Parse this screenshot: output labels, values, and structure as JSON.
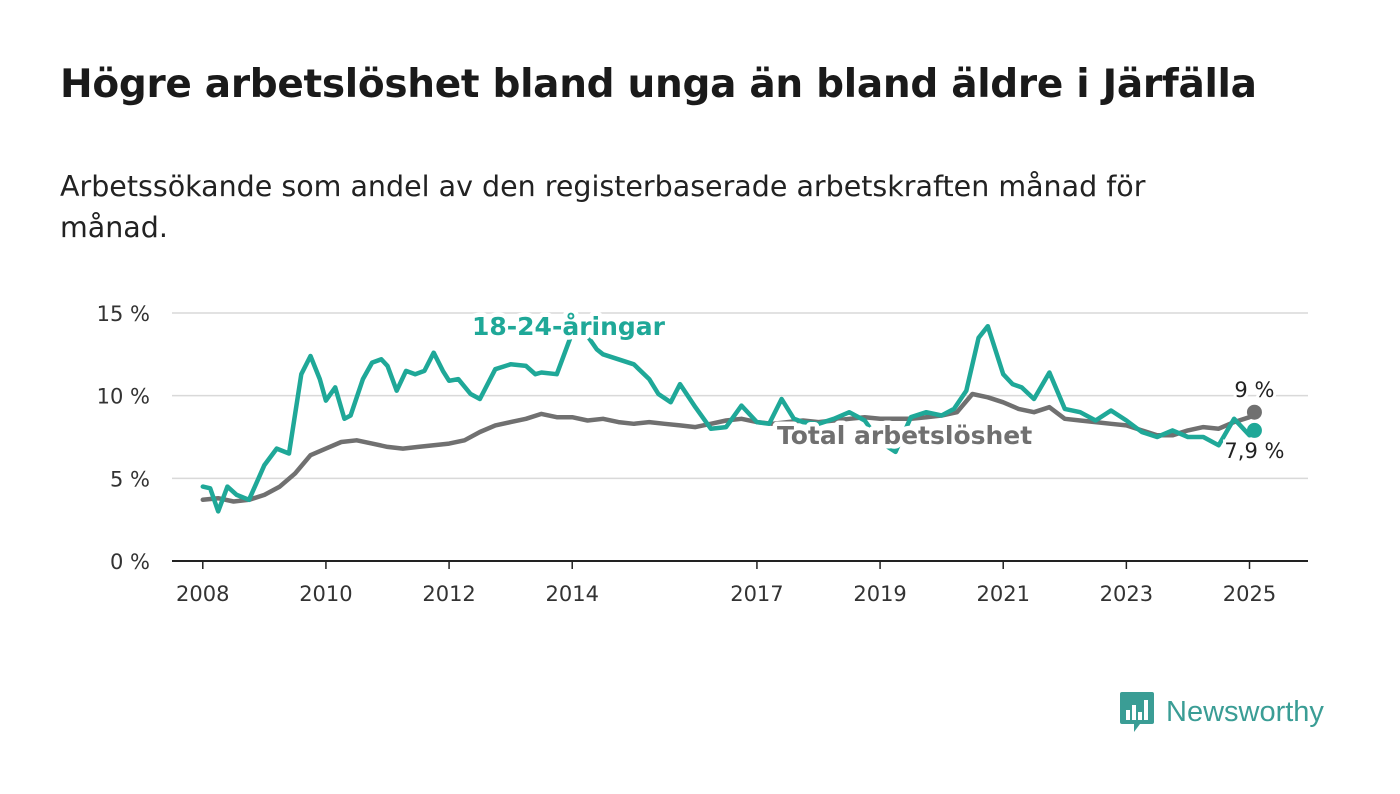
{
  "title": "Högre arbetslöshet bland unga än bland äldre i Järfälla",
  "subtitle": "Arbetssökande som andel av den registerbaserade arbetskraften månad för månad.",
  "brand": {
    "name": "Newsworthy",
    "color": "#3a9d95"
  },
  "chart_data": {
    "type": "line",
    "ylim": [
      0,
      15
    ],
    "xlim": [
      2007.5,
      2025.95
    ],
    "yticks": [
      {
        "value": 0,
        "label": "0 %"
      },
      {
        "value": 5,
        "label": "5 %"
      },
      {
        "value": 10,
        "label": "10 %"
      },
      {
        "value": 15,
        "label": "15 %"
      }
    ],
    "xticks": [
      {
        "value": 2008.0,
        "label": "2008"
      },
      {
        "value": 2010.0,
        "label": "2010"
      },
      {
        "value": 2012.0,
        "label": "2012"
      },
      {
        "value": 2014.0,
        "label": "2014"
      },
      {
        "value": 2017.0,
        "label": "2017"
      },
      {
        "value": 2019.0,
        "label": "2019"
      },
      {
        "value": 2021.0,
        "label": "2021"
      },
      {
        "value": 2023.0,
        "label": "2023"
      },
      {
        "value": 2025.0,
        "label": "2025"
      }
    ],
    "grid": true,
    "series": [
      {
        "name": "Total arbetslöshet",
        "color": "#707070",
        "end_label": "9 %",
        "x": [
          2008.0,
          2008.25,
          2008.5,
          2008.75,
          2009.0,
          2009.25,
          2009.5,
          2009.75,
          2010.0,
          2010.25,
          2010.5,
          2010.75,
          2011.0,
          2011.25,
          2011.5,
          2011.75,
          2012.0,
          2012.25,
          2012.5,
          2012.75,
          2013.0,
          2013.25,
          2013.5,
          2013.75,
          2014.0,
          2014.25,
          2014.5,
          2014.75,
          2015.0,
          2015.25,
          2015.5,
          2015.75,
          2016.0,
          2016.25,
          2016.5,
          2016.75,
          2017.0,
          2017.25,
          2017.5,
          2017.75,
          2018.0,
          2018.25,
          2018.5,
          2018.75,
          2019.0,
          2019.25,
          2019.5,
          2019.75,
          2020.0,
          2020.25,
          2020.5,
          2020.75,
          2021.0,
          2021.25,
          2021.5,
          2021.75,
          2022.0,
          2022.25,
          2022.5,
          2022.75,
          2023.0,
          2023.25,
          2023.5,
          2023.75,
          2024.0,
          2024.25,
          2024.5,
          2024.75,
          2025.0,
          2025.08
        ],
        "y": [
          3.7,
          3.8,
          3.6,
          3.7,
          4.0,
          4.5,
          5.3,
          6.4,
          6.8,
          7.2,
          7.3,
          7.1,
          6.9,
          6.8,
          6.9,
          7.0,
          7.1,
          7.3,
          7.8,
          8.2,
          8.4,
          8.6,
          8.9,
          8.7,
          8.7,
          8.5,
          8.6,
          8.4,
          8.3,
          8.4,
          8.3,
          8.2,
          8.1,
          8.3,
          8.5,
          8.6,
          8.4,
          8.3,
          8.4,
          8.5,
          8.4,
          8.5,
          8.6,
          8.7,
          8.6,
          8.6,
          8.6,
          8.7,
          8.8,
          9.0,
          10.1,
          9.9,
          9.6,
          9.2,
          9.0,
          9.3,
          8.6,
          8.5,
          8.4,
          8.3,
          8.2,
          7.9,
          7.6,
          7.6,
          7.9,
          8.1,
          8.0,
          8.4,
          8.7,
          9.0
        ]
      },
      {
        "name": "18-24-åringar",
        "color": "#1fa898",
        "end_label": "7,9 %",
        "x": [
          2008.0,
          2008.12,
          2008.25,
          2008.4,
          2008.55,
          2008.75,
          2009.0,
          2009.2,
          2009.4,
          2009.6,
          2009.75,
          2009.9,
          2010.0,
          2010.15,
          2010.3,
          2010.4,
          2010.6,
          2010.75,
          2010.9,
          2011.0,
          2011.15,
          2011.3,
          2011.45,
          2011.6,
          2011.75,
          2011.9,
          2012.0,
          2012.15,
          2012.35,
          2012.5,
          2012.75,
          2013.0,
          2013.25,
          2013.4,
          2013.5,
          2013.75,
          2014.0,
          2014.25,
          2014.4,
          2014.5,
          2014.75,
          2015.0,
          2015.25,
          2015.4,
          2015.6,
          2015.75,
          2016.0,
          2016.25,
          2016.5,
          2016.75,
          2017.0,
          2017.2,
          2017.4,
          2017.6,
          2017.75,
          2018.0,
          2018.25,
          2018.5,
          2018.75,
          2019.0,
          2019.25,
          2019.5,
          2019.75,
          2020.0,
          2020.2,
          2020.4,
          2020.6,
          2020.75,
          2021.0,
          2021.15,
          2021.3,
          2021.5,
          2021.75,
          2022.0,
          2022.25,
          2022.5,
          2022.75,
          2023.0,
          2023.25,
          2023.5,
          2023.75,
          2024.0,
          2024.25,
          2024.5,
          2024.75,
          2025.0,
          2025.08
        ],
        "y": [
          4.5,
          4.4,
          3.0,
          4.5,
          4.0,
          3.7,
          5.8,
          6.8,
          6.5,
          11.3,
          12.4,
          11.0,
          9.7,
          10.5,
          8.6,
          8.8,
          11.0,
          12.0,
          12.2,
          11.8,
          10.3,
          11.5,
          11.3,
          11.5,
          12.6,
          11.5,
          10.9,
          11.0,
          10.1,
          9.8,
          11.6,
          11.9,
          11.8,
          11.3,
          11.4,
          11.3,
          13.8,
          13.6,
          12.8,
          12.5,
          12.2,
          11.9,
          11.0,
          10.1,
          9.6,
          10.7,
          9.3,
          8.0,
          8.1,
          9.4,
          8.4,
          8.3,
          9.8,
          8.6,
          8.4,
          8.3,
          8.6,
          9.0,
          8.5,
          7.2,
          6.6,
          8.7,
          9.0,
          8.8,
          9.2,
          10.3,
          13.5,
          14.2,
          11.3,
          10.7,
          10.5,
          9.8,
          11.4,
          9.2,
          9.0,
          8.5,
          9.1,
          8.5,
          7.8,
          7.5,
          7.9,
          7.5,
          7.5,
          7.0,
          8.6,
          7.6,
          7.9
        ]
      }
    ]
  }
}
